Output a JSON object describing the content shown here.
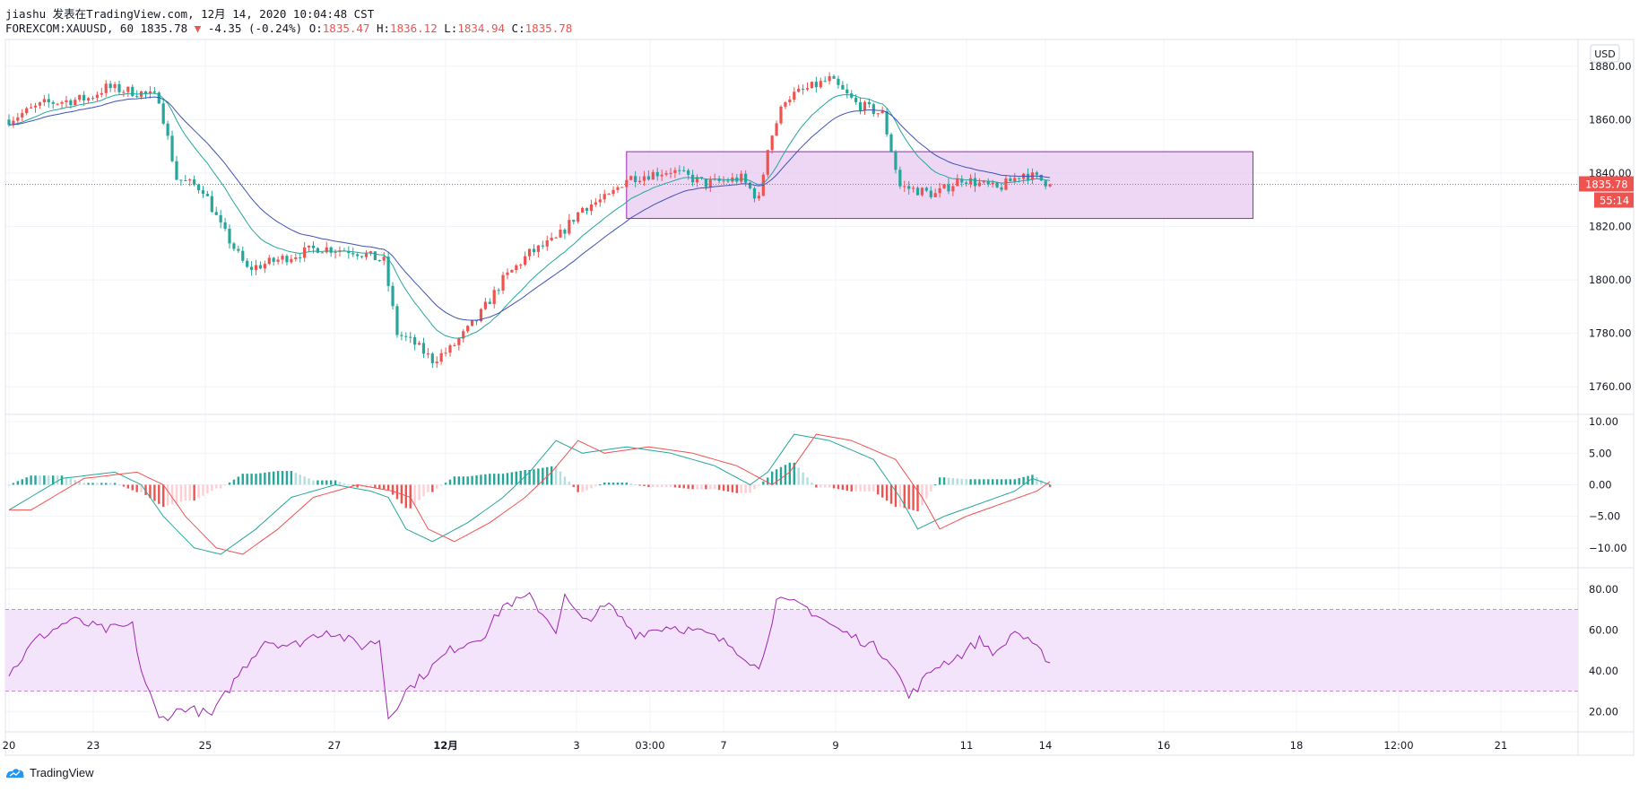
{
  "header": {
    "line1": "jiashu 发表在TradingView.com, 12月 14, 2020 10:04:48 CST",
    "symbol": "FOREXCOM:XAUUSD, 60",
    "price": "1835.78",
    "change": "-4.35 (-0.24%)",
    "o_label": "O:",
    "o": "1835.47",
    "h_label": "H:",
    "h": "1836.12",
    "l_label": "L:",
    "l": "1834.94",
    "c_label": "C:",
    "c": "1835.78"
  },
  "currency": "USD",
  "last_price_label": "1835.78",
  "countdown_label": "55:14",
  "footer": {
    "brand": "TradingView"
  },
  "colors": {
    "up": "#ef5350",
    "down": "#26a69a",
    "ma_fast": "#26a69a",
    "ma_slow": "#3f51b5",
    "box_fill": "#e8c9f0",
    "box_stroke": "#9c27b0",
    "rsi_line": "#9c27b0",
    "rsi_band": "#f3e3fb",
    "macd_line": "#26a69a",
    "signal_line": "#ef5350"
  },
  "chart_data": [
    {
      "type": "candlestick",
      "title": "FOREXCOM:XAUUSD, 60",
      "ylim": [
        1750,
        1890
      ],
      "yticks": [
        "1760.00",
        "1780.00",
        "1800.00",
        "1820.00",
        "1840.00",
        "1860.00",
        "1880.00"
      ],
      "xticks": [
        "20",
        "23",
        "25",
        "27",
        "12月",
        "3",
        "03:00",
        "7",
        "9",
        "11",
        "14",
        "16",
        "18",
        "12:00",
        "21"
      ],
      "price_path": [
        [
          0,
          1860
        ],
        [
          8,
          1866
        ],
        [
          18,
          1868
        ],
        [
          22,
          1872
        ],
        [
          30,
          1870
        ],
        [
          34,
          1868
        ],
        [
          38,
          1838
        ],
        [
          44,
          1834
        ],
        [
          48,
          1820
        ],
        [
          54,
          1804
        ],
        [
          62,
          1808
        ],
        [
          70,
          1812
        ],
        [
          78,
          1811
        ],
        [
          85,
          1807
        ],
        [
          88,
          1780
        ],
        [
          92,
          1776
        ],
        [
          96,
          1770
        ],
        [
          100,
          1774
        ],
        [
          106,
          1785
        ],
        [
          112,
          1800
        ],
        [
          118,
          1810
        ],
        [
          124,
          1815
        ],
        [
          130,
          1827
        ],
        [
          136,
          1831
        ],
        [
          140,
          1838
        ],
        [
          150,
          1841
        ],
        [
          158,
          1836
        ],
        [
          166,
          1838
        ],
        [
          170,
          1830
        ],
        [
          172,
          1850
        ],
        [
          176,
          1868
        ],
        [
          186,
          1875
        ],
        [
          192,
          1866
        ],
        [
          198,
          1862
        ],
        [
          202,
          1835
        ],
        [
          210,
          1832
        ],
        [
          216,
          1838
        ],
        [
          224,
          1834
        ],
        [
          230,
          1840
        ],
        [
          236,
          1836
        ]
      ],
      "last_close": 1835.78,
      "overlays": [
        {
          "name": "MA fast",
          "color": "#26a69a"
        },
        {
          "name": "MA slow",
          "color": "#3f51b5"
        }
      ],
      "range_box": {
        "x_from": 140,
        "x_to": 282,
        "y_from": 1823,
        "y_to": 1848
      }
    },
    {
      "type": "macd",
      "ylim": [
        -13,
        11
      ],
      "yticks": [
        "10.00",
        "5.00",
        "0.00",
        "−5.00",
        "−10.00"
      ],
      "macd_path": [
        [
          0,
          -4
        ],
        [
          12,
          1
        ],
        [
          24,
          2
        ],
        [
          30,
          0
        ],
        [
          35,
          -5
        ],
        [
          42,
          -10
        ],
        [
          48,
          -11
        ],
        [
          56,
          -7
        ],
        [
          64,
          -2
        ],
        [
          74,
          0
        ],
        [
          82,
          -1
        ],
        [
          86,
          -2
        ],
        [
          90,
          -7
        ],
        [
          96,
          -9
        ],
        [
          104,
          -6
        ],
        [
          112,
          -2
        ],
        [
          118,
          2
        ],
        [
          124,
          7
        ],
        [
          130,
          5
        ],
        [
          140,
          6
        ],
        [
          150,
          5
        ],
        [
          160,
          3
        ],
        [
          168,
          0
        ],
        [
          172,
          2
        ],
        [
          178,
          8
        ],
        [
          186,
          7
        ],
        [
          196,
          4
        ],
        [
          202,
          -2
        ],
        [
          206,
          -7
        ],
        [
          212,
          -5
        ],
        [
          220,
          -3
        ],
        [
          228,
          -1
        ],
        [
          232,
          1
        ],
        [
          236,
          0
        ]
      ],
      "signal_lag": 2
    },
    {
      "type": "rsi",
      "ylim": [
        10,
        90
      ],
      "yticks": [
        "80.00",
        "60.00",
        "40.00",
        "20.00"
      ],
      "band": [
        30,
        70
      ],
      "rsi_path": [
        [
          0,
          38
        ],
        [
          6,
          55
        ],
        [
          14,
          65
        ],
        [
          22,
          60
        ],
        [
          28,
          62
        ],
        [
          30,
          40
        ],
        [
          34,
          16
        ],
        [
          40,
          22
        ],
        [
          46,
          18
        ],
        [
          52,
          38
        ],
        [
          58,
          55
        ],
        [
          64,
          52
        ],
        [
          72,
          60
        ],
        [
          80,
          52
        ],
        [
          84,
          55
        ],
        [
          86,
          17
        ],
        [
          90,
          30
        ],
        [
          94,
          38
        ],
        [
          100,
          50
        ],
        [
          108,
          58
        ],
        [
          112,
          72
        ],
        [
          118,
          76
        ],
        [
          124,
          60
        ],
        [
          126,
          76
        ],
        [
          130,
          64
        ],
        [
          136,
          72
        ],
        [
          142,
          58
        ],
        [
          150,
          62
        ],
        [
          158,
          58
        ],
        [
          164,
          52
        ],
        [
          168,
          45
        ],
        [
          170,
          40
        ],
        [
          174,
          74
        ],
        [
          180,
          72
        ],
        [
          188,
          60
        ],
        [
          196,
          52
        ],
        [
          200,
          45
        ],
        [
          204,
          27
        ],
        [
          210,
          42
        ],
        [
          216,
          48
        ],
        [
          220,
          55
        ],
        [
          224,
          48
        ],
        [
          228,
          60
        ],
        [
          232,
          52
        ],
        [
          236,
          45
        ]
      ]
    }
  ]
}
